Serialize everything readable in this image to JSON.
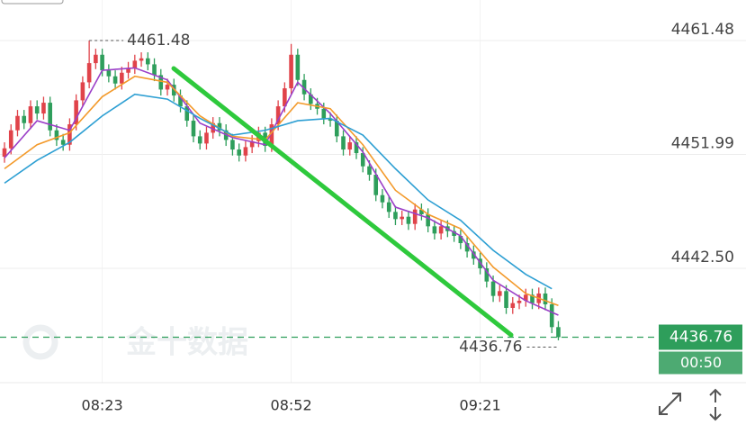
{
  "chart_data": {
    "type": "candlestick",
    "categories": [
      null,
      null,
      null,
      null,
      null,
      null,
      null,
      null,
      null,
      null,
      null,
      null,
      null,
      null,
      null,
      "08:23",
      null,
      null,
      null,
      null,
      null,
      null,
      null,
      null,
      null,
      null,
      null,
      null,
      null,
      null,
      null,
      null,
      null,
      null,
      null,
      null,
      null,
      null,
      null,
      null,
      null,
      null,
      null,
      null,
      "08:52",
      null,
      null,
      null,
      null,
      null,
      null,
      null,
      null,
      null,
      null,
      null,
      null,
      null,
      null,
      null,
      null,
      null,
      null,
      null,
      null,
      null,
      null,
      null,
      null,
      null,
      null,
      null,
      null,
      "09:21",
      null,
      null,
      null,
      null,
      null,
      null,
      null,
      null,
      null,
      null,
      null,
      null
    ],
    "open": [
      4451.8,
      4452.5,
      4454.0,
      4455.2,
      4454.6,
      4456.0,
      4455.4,
      4456.3,
      4454.0,
      4453.2,
      4452.8,
      4454.5,
      4456.5,
      4458.0,
      4459.6,
      4460.3,
      4459.0,
      4458.5,
      4457.9,
      4458.8,
      4459.2,
      4459.8,
      4460.0,
      4459.5,
      4458.6,
      4457.4,
      4457.8,
      4456.9,
      4456.0,
      4454.8,
      4453.5,
      4452.9,
      4453.8,
      4454.6,
      4454.0,
      4453.2,
      4452.4,
      4451.9,
      4452.6,
      4453.1,
      4453.8,
      4452.7,
      4454.5,
      4456.0,
      4457.5,
      4460.3,
      4458.2,
      4457.0,
      4456.2,
      4455.8,
      4455.0,
      4454.8,
      4453.5,
      4452.4,
      4453.0,
      4452.1,
      4451.0,
      4450.3,
      4448.6,
      4448.0,
      4447.2,
      4446.6,
      4446.8,
      4446.2,
      4447.4,
      4447.0,
      4446.0,
      4445.4,
      4446.0,
      4445.6,
      4445.2,
      4444.6,
      4443.9,
      4443.3,
      4442.5,
      4441.4,
      4440.2,
      4440.6,
      4439.2,
      4439.6,
      4439.8,
      4440.3,
      4439.6,
      4440.4,
      4439.5,
      4437.6
    ],
    "high": [
      4453.0,
      4454.5,
      4455.7,
      4455.7,
      4456.5,
      4456.5,
      4456.8,
      4456.8,
      4454.5,
      4453.7,
      4455.0,
      4457.0,
      4458.5,
      4461.48,
      4460.8,
      4460.8,
      4459.5,
      4459.0,
      4459.3,
      4459.7,
      4460.3,
      4460.5,
      4460.5,
      4460.0,
      4459.1,
      4458.3,
      4458.3,
      4457.4,
      4456.5,
      4455.3,
      4454.0,
      4454.3,
      4455.1,
      4455.1,
      4454.5,
      4453.7,
      4452.9,
      4453.1,
      4453.6,
      4454.3,
      4454.3,
      4455.0,
      4456.5,
      4458.0,
      4461.2,
      4460.8,
      4458.7,
      4457.5,
      4456.7,
      4456.3,
      4455.5,
      4455.3,
      4454.0,
      4453.5,
      4453.5,
      4452.6,
      4451.5,
      4450.8,
      4449.1,
      4448.5,
      4447.7,
      4447.3,
      4447.3,
      4447.9,
      4447.9,
      4447.5,
      4446.5,
      4446.5,
      4446.5,
      4446.1,
      4445.7,
      4445.1,
      4444.4,
      4443.8,
      4443.0,
      4441.9,
      4441.1,
      4441.1,
      4440.1,
      4440.3,
      4440.8,
      4440.8,
      4440.9,
      4440.9,
      4440.0,
      4438.1
    ],
    "low": [
      4451.3,
      4452.0,
      4453.5,
      4454.1,
      4454.1,
      4454.9,
      4454.9,
      4453.5,
      4452.7,
      4452.3,
      4452.3,
      4454.0,
      4456.0,
      4457.5,
      4459.1,
      4458.5,
      4458.0,
      4457.4,
      4457.4,
      4458.3,
      4458.7,
      4459.3,
      4459.0,
      4458.1,
      4456.9,
      4456.9,
      4456.4,
      4455.5,
      4454.3,
      4453.0,
      4452.4,
      4452.4,
      4453.3,
      4453.5,
      4452.7,
      4451.9,
      4451.4,
      4451.4,
      4452.1,
      4452.6,
      4452.2,
      4452.2,
      4454.0,
      4455.5,
      4457.0,
      4457.7,
      4456.5,
      4455.7,
      4455.3,
      4454.5,
      4454.3,
      4453.0,
      4451.9,
      4451.9,
      4451.6,
      4450.5,
      4449.8,
      4448.1,
      4447.5,
      4446.7,
      4446.1,
      4446.1,
      4445.7,
      4445.7,
      4446.5,
      4445.5,
      4444.9,
      4444.9,
      4445.1,
      4444.7,
      4444.1,
      4443.4,
      4442.8,
      4442.0,
      4440.9,
      4439.7,
      4439.7,
      4438.7,
      4438.7,
      4439.1,
      4439.3,
      4439.1,
      4439.1,
      4439.0,
      4437.1,
      4436.5
    ],
    "close": [
      4452.5,
      4454.0,
      4455.2,
      4454.6,
      4456.0,
      4455.4,
      4456.3,
      4454.0,
      4453.2,
      4452.8,
      4454.5,
      4456.5,
      4458.0,
      4459.6,
      4460.3,
      4459.0,
      4458.5,
      4457.9,
      4458.8,
      4459.2,
      4459.8,
      4460.0,
      4459.5,
      4458.6,
      4457.4,
      4457.8,
      4456.9,
      4456.0,
      4454.8,
      4453.5,
      4452.9,
      4453.8,
      4454.6,
      4454.0,
      4453.2,
      4452.4,
      4451.9,
      4452.6,
      4453.1,
      4453.8,
      4452.7,
      4454.5,
      4456.0,
      4457.5,
      4460.3,
      4458.2,
      4457.0,
      4456.2,
      4455.8,
      4455.0,
      4454.8,
      4453.5,
      4452.4,
      4453.0,
      4452.1,
      4451.0,
      4450.3,
      4448.6,
      4448.0,
      4447.2,
      4446.6,
      4446.8,
      4446.2,
      4447.4,
      4447.0,
      4446.0,
      4445.4,
      4446.0,
      4445.6,
      4445.2,
      4444.6,
      4443.9,
      4443.3,
      4442.5,
      4441.4,
      4440.2,
      4440.6,
      4439.2,
      4439.6,
      4439.8,
      4440.3,
      4439.6,
      4440.4,
      4439.5,
      4437.6,
      4436.76
    ],
    "up_color": "#e0434a",
    "down_color": "#2e9e5b",
    "lines": [
      {
        "color": "#9b3fc8",
        "x": [
          0,
          5,
          10,
          15,
          20,
          25,
          30,
          35,
          40,
          45,
          50,
          55,
          60,
          65,
          70,
          75,
          80,
          85
        ],
        "values": [
          4451.7,
          4454.8,
          4454.0,
          4459.0,
          4459.2,
          4458.2,
          4454.6,
          4453.4,
          4452.8,
          4458.0,
          4455.4,
          4452.2,
          4447.6,
          4446.7,
          4445.2,
          4441.5,
          4439.8,
          4438.6
        ]
      },
      {
        "color": "#f39a2b",
        "x": [
          0,
          5,
          10,
          15,
          20,
          25,
          30,
          35,
          40,
          45,
          50,
          55,
          60,
          65,
          70,
          75,
          80,
          85
        ],
        "values": [
          4450.8,
          4452.8,
          4453.8,
          4456.8,
          4458.5,
          4458.0,
          4455.2,
          4453.5,
          4453.2,
          4456.3,
          4455.8,
          4452.8,
          4449.0,
          4447.0,
          4445.8,
          4442.6,
          4440.4,
          4439.4
        ]
      },
      {
        "color": "#2d9fd3",
        "x": [
          0,
          5,
          10,
          15,
          20,
          25,
          30,
          35,
          40,
          45,
          50,
          55,
          60,
          65,
          70,
          75,
          80,
          84
        ],
        "values": [
          4449.6,
          4451.5,
          4453.0,
          4455.2,
          4457.0,
          4456.6,
          4455.0,
          4453.6,
          4454.0,
          4454.8,
          4455.0,
          4453.6,
          4450.8,
          4448.2,
          4446.5,
          4444.0,
          4442.0,
          4440.8
        ]
      }
    ],
    "xlim": [
      -0.69,
      113.8
    ],
    "ylim": [
      4432.97,
      4464.86
    ],
    "yticks": [
      4461.48,
      4451.99,
      {
        "value": 4442.5,
        "label": "4442.50"
      }
    ],
    "grid": true,
    "max_price": 4461.48,
    "last_price": 4436.76,
    "countdown": "00:50",
    "watermark": "金十数据"
  }
}
